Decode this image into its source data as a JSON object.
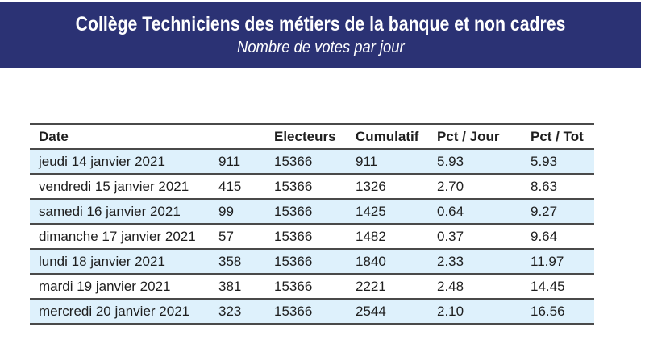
{
  "banner": {
    "title": "Collège Techniciens des métiers de la banque et non cadres",
    "subtitle": "Nombre de votes par jour"
  },
  "table": {
    "columns": [
      "Date",
      "",
      "Electeurs",
      "Cumulatif",
      "Pct / Jour",
      "Pct / Tot"
    ],
    "column_keys": [
      "date",
      "votes",
      "electeurs",
      "cumulatif",
      "pct-jour",
      "pct-tot"
    ],
    "rows": [
      [
        "jeudi 14 janvier 2021",
        "911",
        "15366",
        "911",
        "5.93",
        "5.93"
      ],
      [
        "vendredi 15 janvier 2021",
        "415",
        "15366",
        "1326",
        "2.70",
        "8.63"
      ],
      [
        "samedi 16 janvier 2021",
        "99",
        "15366",
        "1425",
        "0.64",
        "9.27"
      ],
      [
        "dimanche 17 janvier 2021",
        "57",
        "15366",
        "1482",
        "0.37",
        "9.64"
      ],
      [
        "lundi 18 janvier 2021",
        "358",
        "15366",
        "1840",
        "2.33",
        "11.97"
      ],
      [
        "mardi 19 janvier 2021",
        "381",
        "15366",
        "2221",
        "2.48",
        "14.45"
      ],
      [
        "mercredi 20 janvier 2021",
        "323",
        "15366",
        "2544",
        "2.10",
        "16.56"
      ]
    ]
  },
  "colors": {
    "banner_background": "#2b3274",
    "banner_text": "#ffffff",
    "row_stripe": "#def1fc",
    "table_border": "#4a4a4a",
    "table_text": "#1e1e1e"
  }
}
